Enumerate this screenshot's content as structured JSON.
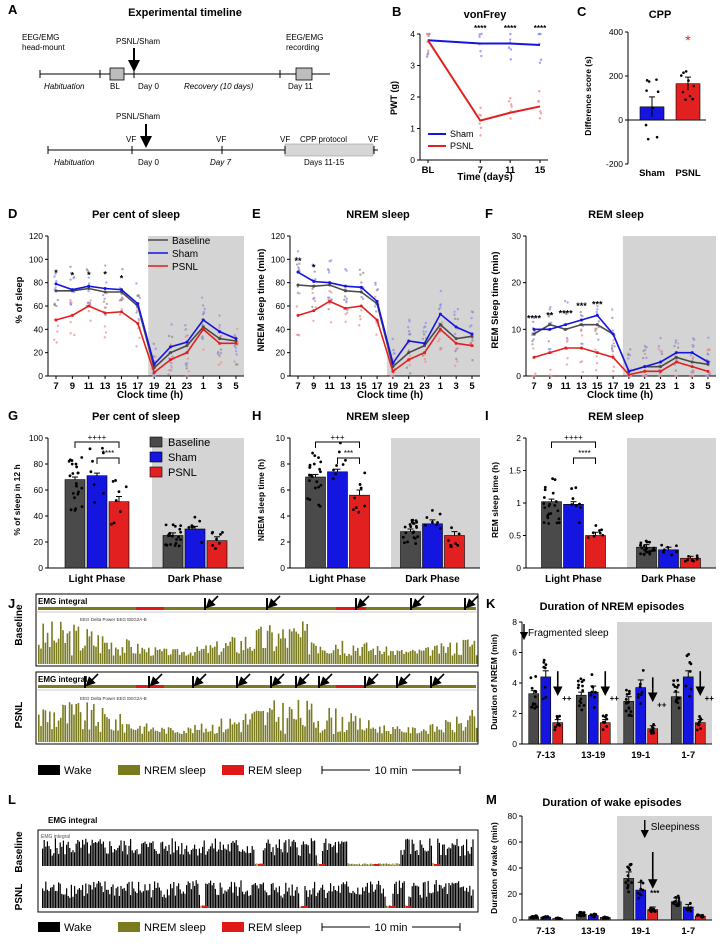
{
  "panels": {
    "A": {
      "letter": "A",
      "title": "Experimental timeline",
      "t1": {
        "head": "EEG/EMG",
        "head2": "head-mount",
        "hab": "Habituation",
        "bl": "BL",
        "surgery": "PSNL/Sham",
        "day0": "Day 0",
        "recovery": "Recovery (10 days)",
        "rec": "EEG/EMG",
        "rec2": "recording",
        "day11": "Day 11"
      },
      "t2": {
        "hab": "Habituation",
        "vf": "VF",
        "surgery": "PSNL/Sham",
        "day0": "Day 0",
        "day7": "Day 7",
        "cpp": "CPP protocol",
        "days": "Days 11-15"
      }
    },
    "B": {
      "letter": "B",
      "title": "vonFrey",
      "ylabel": "PWT (g)",
      "xlabel": "Time (days)",
      "stars": [
        "****",
        "****",
        "****"
      ],
      "legend": [
        "Sham",
        "PSNL"
      ]
    },
    "C": {
      "letter": "C",
      "title": "CPP",
      "ylabel": "Difference score (s)",
      "star": "*"
    },
    "D": {
      "letter": "D",
      "title": "Per cent of sleep",
      "ylabel": "% of sleep",
      "xlabel": "Clock time (h)",
      "legend": [
        "Baseline",
        "Sham",
        "PSNL"
      ],
      "stars": [
        "*",
        "*",
        "*",
        "*",
        "*"
      ]
    },
    "E": {
      "letter": "E",
      "title": "NREM sleep",
      "ylabel": "NREM sleep time (min)",
      "xlabel": "Clock time (h)",
      "stars": [
        "**",
        "*"
      ]
    },
    "F": {
      "letter": "F",
      "title": "REM sleep",
      "ylabel": "REM Sleep time (min)",
      "xlabel": "Clock time (h)",
      "stars": [
        "****",
        "**",
        "****",
        "***",
        "***"
      ]
    },
    "G": {
      "letter": "G",
      "title": "Per cent of sleep",
      "ylabel": "% of sleep in 12 h",
      "legend": [
        "Baseline",
        "Sham",
        "PSNL"
      ],
      "stars": [
        "++++",
        "****"
      ]
    },
    "H": {
      "letter": "H",
      "title": "NREM sleep",
      "ylabel": "NREM sleep time (h)",
      "stars": [
        "+++",
        "***"
      ]
    },
    "I": {
      "letter": "I",
      "title": "REM sleep",
      "ylabel": "REM sleep time (h)",
      "stars": [
        "++++",
        "****"
      ]
    },
    "J": {
      "letter": "J",
      "emg": "EMG integral",
      "delta": "EEG Delta Power EEG EEG2A-B",
      "rows": [
        "Baseline",
        "PSNL"
      ],
      "legend": [
        "Wake",
        "NREM sleep",
        "REM sleep"
      ],
      "scale": "10 min"
    },
    "K": {
      "letter": "K",
      "title": "Duration of NREM episodes",
      "ylabel": "Duration of NREM (min)",
      "note": "Fragmented sleep",
      "marks": [
        "++",
        "++",
        "++",
        "++"
      ]
    },
    "L": {
      "letter": "L",
      "emg": "EMG integral",
      "emg_small": "EMG integral",
      "rows": [
        "Baseline",
        "PSNL"
      ],
      "legend": [
        "Wake",
        "NREM sleep",
        "REM sleep"
      ],
      "scale": "10 min"
    },
    "M": {
      "letter": "M",
      "title": "Duration of wake episodes",
      "ylabel": "Duration of wake (min)",
      "note": "Sleepiness",
      "stars": [
        "***"
      ]
    }
  },
  "colors": {
    "baseline": "#4a4a4a",
    "sham": "#1515e0",
    "psnl": "#e22020",
    "wake": "#000000",
    "nrem": "#7a7a1e",
    "rem": "#e01818",
    "shade": "#d4d4d4"
  },
  "chart_data": [
    {
      "id": "B",
      "type": "line",
      "title": "vonFrey",
      "xlabel": "Time (days)",
      "ylabel": "PWT (g)",
      "categories": [
        "BL",
        "7",
        "11",
        "15"
      ],
      "x": [
        0,
        7,
        11,
        15
      ],
      "ylim": [
        0,
        4
      ],
      "yticks": [
        0,
        1,
        2,
        3,
        4
      ],
      "series": [
        {
          "name": "Sham",
          "values": [
            3.8,
            3.7,
            3.7,
            3.65
          ]
        },
        {
          "name": "PSNL",
          "values": [
            3.8,
            1.25,
            1.5,
            1.7
          ]
        }
      ]
    },
    {
      "id": "C",
      "type": "bar",
      "title": "CPP",
      "ylabel": "Difference score (s)",
      "categories": [
        "Sham",
        "PSNL"
      ],
      "values": [
        60,
        165
      ],
      "errors": [
        45,
        30
      ],
      "ylim": [
        -200,
        400
      ],
      "yticks": [
        -200,
        0,
        200,
        400
      ]
    },
    {
      "id": "D",
      "type": "line",
      "title": "Per cent of sleep",
      "xlabel": "Clock time (h)",
      "ylabel": "% of sleep",
      "categories": [
        "7",
        "9",
        "11",
        "13",
        "15",
        "17",
        "19",
        "21",
        "23",
        "1",
        "3",
        "5"
      ],
      "ylim": [
        0,
        120
      ],
      "yticks": [
        0,
        20,
        40,
        60,
        80,
        100,
        120
      ],
      "dark_from": "19",
      "series": [
        {
          "name": "Baseline",
          "values": [
            73,
            73,
            75,
            72,
            72,
            60,
            7,
            20,
            26,
            42,
            32,
            30
          ]
        },
        {
          "name": "Sham",
          "values": [
            79,
            74,
            77,
            75,
            74,
            62,
            10,
            25,
            29,
            48,
            38,
            32
          ]
        },
        {
          "name": "PSNL",
          "values": [
            48,
            52,
            60,
            54,
            55,
            45,
            3,
            14,
            20,
            40,
            28,
            28
          ]
        }
      ]
    },
    {
      "id": "E",
      "type": "line",
      "title": "NREM sleep",
      "xlabel": "Clock time (h)",
      "ylabel": "NREM sleep time (min)",
      "categories": [
        "7",
        "9",
        "11",
        "13",
        "15",
        "17",
        "19",
        "21",
        "23",
        "1",
        "3",
        "5"
      ],
      "ylim": [
        0,
        120
      ],
      "yticks": [
        0,
        20,
        40,
        60,
        80,
        100,
        120
      ],
      "dark_from": "19",
      "series": [
        {
          "name": "Baseline",
          "values": [
            78,
            77,
            78,
            73,
            72,
            62,
            8,
            20,
            26,
            44,
            32,
            34
          ]
        },
        {
          "name": "Sham",
          "values": [
            89,
            81,
            80,
            77,
            76,
            64,
            11,
            30,
            28,
            53,
            42,
            36
          ]
        },
        {
          "name": "PSNL",
          "values": [
            52,
            56,
            64,
            58,
            60,
            48,
            4,
            14,
            20,
            40,
            28,
            26
          ]
        }
      ]
    },
    {
      "id": "F",
      "type": "line",
      "title": "REM sleep",
      "xlabel": "Clock time (h)",
      "ylabel": "REM Sleep time (min)",
      "categories": [
        "7",
        "9",
        "11",
        "13",
        "15",
        "17",
        "19",
        "21",
        "23",
        "1",
        "3",
        "5"
      ],
      "ylim": [
        0,
        30
      ],
      "yticks": [
        0,
        10,
        20,
        30
      ],
      "dark_from": "19",
      "series": [
        {
          "name": "Baseline",
          "values": [
            9,
            11,
            10,
            11,
            11,
            9,
            1,
            2,
            2,
            4,
            3,
            2.5
          ]
        },
        {
          "name": "Sham",
          "values": [
            10,
            10,
            11,
            12,
            13,
            9,
            1,
            2,
            3,
            5,
            5,
            3
          ]
        },
        {
          "name": "PSNL",
          "values": [
            4,
            5,
            6,
            6,
            5,
            4,
            0.3,
            1,
            1,
            3,
            2,
            1
          ]
        }
      ]
    },
    {
      "id": "G",
      "type": "bar",
      "title": "Per cent of sleep",
      "ylabel": "% of sleep in 12 h",
      "categories": [
        "Light Phase",
        "Dark Phase"
      ],
      "ylim": [
        0,
        100
      ],
      "yticks": [
        0,
        20,
        40,
        60,
        80,
        100
      ],
      "series": [
        {
          "name": "Baseline",
          "values": [
            68,
            25
          ],
          "errors": [
            2,
            2
          ]
        },
        {
          "name": "Sham",
          "values": [
            71,
            30
          ],
          "errors": [
            2,
            2
          ]
        },
        {
          "name": "PSNL",
          "values": [
            51,
            21
          ],
          "errors": [
            4,
            3
          ]
        }
      ]
    },
    {
      "id": "H",
      "type": "bar",
      "title": "NREM sleep",
      "ylabel": "NREM sleep time (h)",
      "categories": [
        "Light Phase",
        "Dark Phase"
      ],
      "ylim": [
        0,
        10
      ],
      "yticks": [
        0,
        2,
        4,
        6,
        8,
        10
      ],
      "series": [
        {
          "name": "Baseline",
          "values": [
            7.0,
            2.8
          ],
          "errors": [
            0.2,
            0.2
          ]
        },
        {
          "name": "Sham",
          "values": [
            7.4,
            3.4
          ],
          "errors": [
            0.2,
            0.3
          ]
        },
        {
          "name": "PSNL",
          "values": [
            5.6,
            2.5
          ],
          "errors": [
            0.4,
            0.3
          ]
        }
      ]
    },
    {
      "id": "I",
      "type": "bar",
      "title": "REM sleep",
      "ylabel": "REM sleep time (h)",
      "categories": [
        "Light Phase",
        "Dark Phase"
      ],
      "ylim": [
        0,
        2.0
      ],
      "yticks": [
        0,
        0.5,
        1.0,
        1.5,
        2.0
      ],
      "series": [
        {
          "name": "Baseline",
          "values": [
            1.02,
            0.32
          ],
          "errors": [
            0.04,
            0.04
          ]
        },
        {
          "name": "Sham",
          "values": [
            0.98,
            0.28
          ],
          "errors": [
            0.04,
            0.04
          ]
        },
        {
          "name": "PSNL",
          "values": [
            0.5,
            0.15
          ],
          "errors": [
            0.05,
            0.03
          ]
        }
      ]
    },
    {
      "id": "K",
      "type": "bar",
      "title": "Duration of NREM episodes",
      "ylabel": "Duration of NREM (min)",
      "categories": [
        "7-13",
        "13-19",
        "19-1",
        "1-7"
      ],
      "ylim": [
        0,
        8
      ],
      "yticks": [
        0,
        2,
        4,
        6,
        8
      ],
      "dark_from": "19-1",
      "series": [
        {
          "name": "Baseline",
          "values": [
            3.3,
            3.2,
            2.8,
            3.1
          ],
          "errors": [
            0.2,
            0.2,
            0.3,
            0.3
          ]
        },
        {
          "name": "Sham",
          "values": [
            4.4,
            3.4,
            3.7,
            4.4
          ],
          "errors": [
            0.4,
            0.4,
            0.5,
            0.4
          ]
        },
        {
          "name": "PSNL",
          "values": [
            1.4,
            1.4,
            1.0,
            1.4
          ],
          "errors": [
            0.2,
            0.2,
            0.2,
            0.2
          ]
        }
      ]
    },
    {
      "id": "M",
      "type": "bar",
      "title": "Duration of wake episodes",
      "ylabel": "Duration of wake (min)",
      "categories": [
        "7-13",
        "13-19",
        "19-1",
        "1-7"
      ],
      "ylim": [
        0,
        80
      ],
      "yticks": [
        0,
        20,
        40,
        60,
        80
      ],
      "dark_from": "19-1",
      "series": [
        {
          "name": "Baseline",
          "values": [
            2.5,
            4.5,
            32,
            14
          ],
          "errors": [
            0.6,
            1.5,
            5,
            3
          ]
        },
        {
          "name": "Sham",
          "values": [
            2.2,
            3.5,
            23,
            10
          ],
          "errors": [
            0.6,
            1.0,
            6,
            2
          ]
        },
        {
          "name": "PSNL",
          "values": [
            1.2,
            2.0,
            8,
            3
          ],
          "errors": [
            0.3,
            0.5,
            2,
            1
          ]
        }
      ]
    }
  ]
}
